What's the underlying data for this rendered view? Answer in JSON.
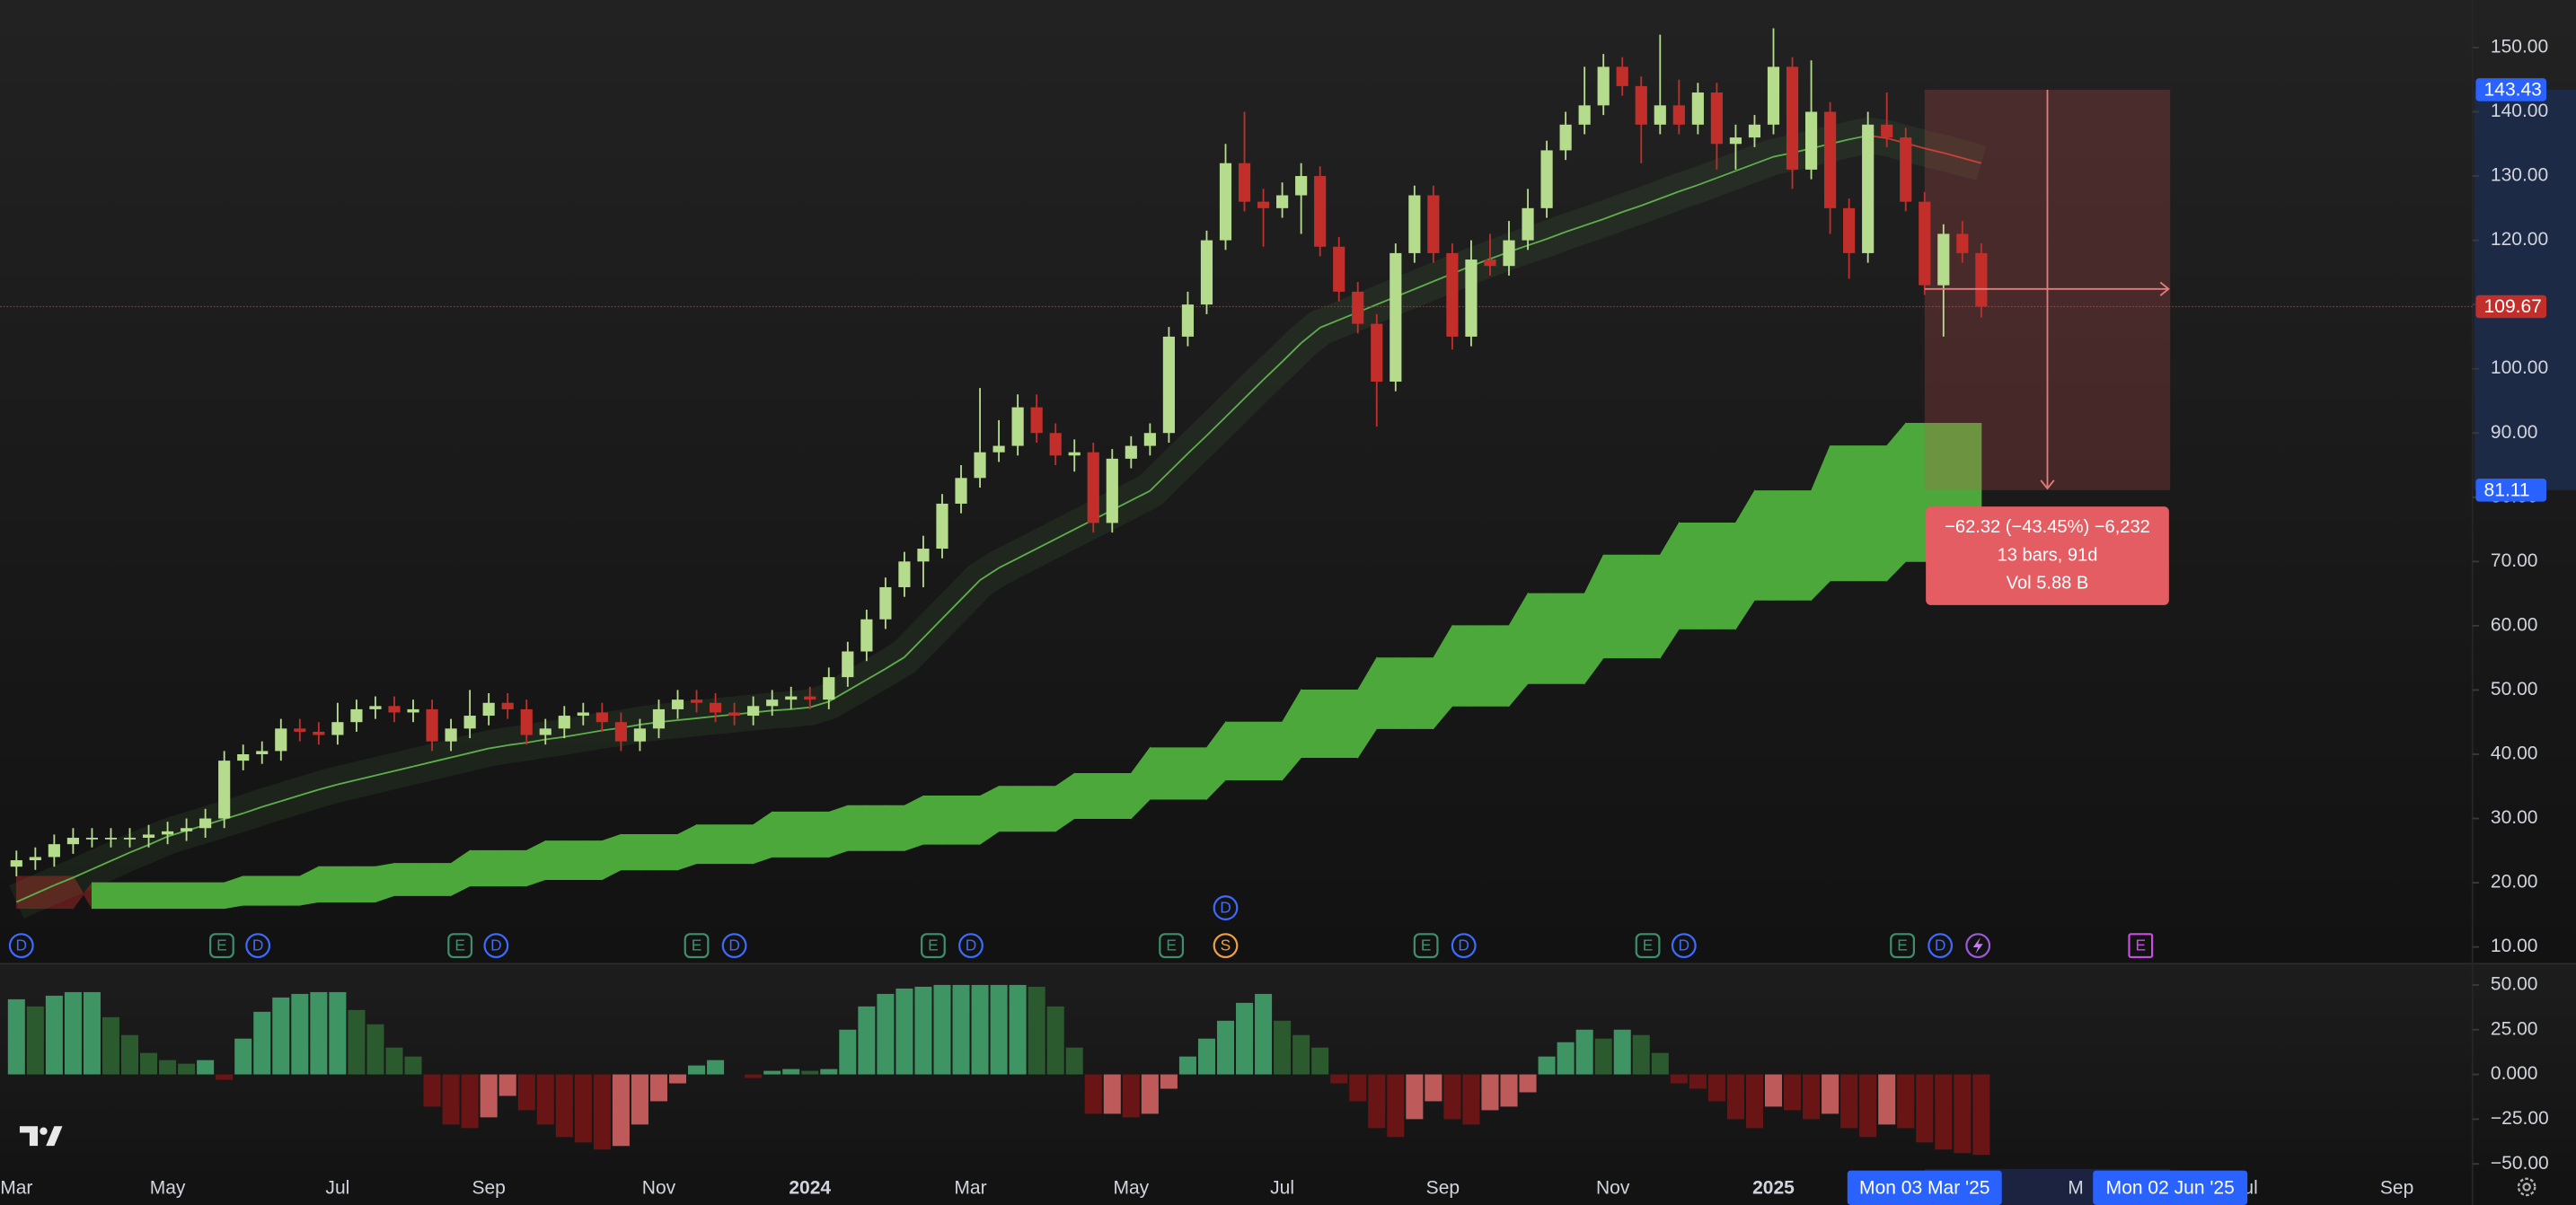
{
  "chart_data": [
    {
      "type": "candlestick",
      "open": [
        22.5,
        23.5,
        24,
        26,
        27,
        27,
        27,
        27,
        27.5,
        28,
        28.5,
        30,
        39,
        40,
        40.5,
        44,
        43.5,
        43,
        45,
        47,
        47.5,
        46.5,
        47,
        42,
        44,
        46,
        48,
        47,
        43,
        44,
        46,
        46.5,
        45,
        42,
        44,
        47,
        48.5,
        48,
        46.5,
        46,
        47.5,
        48.5,
        49,
        48.5,
        52,
        56,
        61,
        66,
        70,
        72,
        79,
        83,
        87,
        88,
        94,
        90,
        86.5,
        87,
        76,
        86,
        88,
        90,
        105,
        110,
        120,
        132,
        126,
        125,
        127,
        130,
        119,
        112,
        107,
        98,
        118,
        127,
        118,
        105,
        117,
        116,
        120,
        125,
        134,
        138,
        141,
        147,
        144,
        138,
        141,
        138,
        143,
        135,
        136,
        138,
        147,
        131,
        140,
        125,
        118,
        138,
        136,
        126,
        113,
        121,
        118
      ],
      "high": [
        25,
        25.5,
        27.5,
        28.5,
        28.5,
        28.5,
        28.5,
        29,
        29.5,
        30,
        31.5,
        40.5,
        41.5,
        42,
        45.5,
        45.5,
        45,
        48,
        48.5,
        49,
        49,
        48.5,
        48.5,
        45.5,
        50,
        49.5,
        49.5,
        48.5,
        45.5,
        47.5,
        48,
        48,
        46.5,
        45.5,
        48.5,
        50,
        50,
        49.5,
        48,
        49,
        50,
        50.5,
        50.5,
        53.5,
        57.5,
        62.5,
        67.5,
        71.5,
        74,
        80.5,
        85,
        97,
        92,
        96,
        96,
        91.5,
        89,
        88.5,
        87.5,
        89.5,
        91.5,
        106.5,
        112,
        121.5,
        135,
        140,
        128,
        129,
        132,
        131.5,
        120.5,
        113.5,
        108.5,
        119.5,
        128.5,
        128.5,
        119.5,
        120,
        121,
        123,
        128,
        135.5,
        140,
        147,
        149,
        148.5,
        145.5,
        152,
        145,
        144.5,
        144.5,
        138,
        139.5,
        153,
        148.5,
        148,
        141.5,
        126.5,
        140,
        143,
        137.5,
        127.5,
        122.5,
        123,
        119.5
      ],
      "low": [
        21,
        22,
        22.5,
        24.5,
        25.5,
        25.5,
        25.5,
        25.5,
        26,
        26.5,
        27,
        28.5,
        37.5,
        38.5,
        39,
        42,
        41.5,
        41.5,
        43.5,
        45.5,
        45,
        45,
        40.5,
        40.5,
        42.5,
        44.5,
        45.5,
        41.5,
        41.5,
        42.5,
        44.5,
        43.5,
        40.5,
        40.5,
        42.5,
        45.5,
        46.5,
        45,
        44.5,
        44.5,
        46,
        47,
        47,
        47,
        50.5,
        54.5,
        59.5,
        64.5,
        66,
        70.5,
        77.5,
        81.5,
        85.5,
        86.5,
        88.5,
        85,
        84,
        74.5,
        74.5,
        84.5,
        86.5,
        88.5,
        103.5,
        108.5,
        118.5,
        124.5,
        119,
        123.5,
        121,
        117.5,
        110.5,
        105.5,
        91,
        96.5,
        116.5,
        116.5,
        103,
        103.5,
        114.5,
        114.5,
        118.5,
        123.5,
        132.5,
        136.5,
        139.5,
        142.5,
        132,
        136.5,
        136.5,
        136.5,
        131,
        131,
        134.5,
        136.5,
        128,
        129.5,
        121,
        114,
        116.5,
        134.5,
        124.5,
        111.5,
        105,
        116.5,
        108
      ],
      "close": [
        23.5,
        24,
        26,
        27,
        27,
        27,
        27,
        27.5,
        28,
        28.5,
        30,
        39,
        40,
        40.5,
        44,
        43.5,
        43,
        45,
        47,
        47.5,
        46.5,
        47,
        42,
        44,
        46,
        48,
        47,
        43,
        44,
        46,
        46.5,
        45,
        42,
        44,
        47,
        48.5,
        48,
        46.5,
        46,
        47.5,
        48.5,
        49,
        48.5,
        52,
        56,
        61,
        66,
        70,
        72,
        79,
        83,
        87,
        88,
        94,
        90,
        86.5,
        87,
        76,
        86,
        88,
        90,
        105,
        110,
        120,
        132,
        126,
        125,
        127,
        130,
        119,
        112,
        107,
        98,
        118,
        127,
        118,
        105,
        117,
        116,
        120,
        125,
        134,
        138,
        141,
        147,
        144,
        138,
        141,
        138,
        143,
        135,
        136,
        138,
        147,
        131,
        140,
        125,
        118,
        138,
        136,
        126,
        113,
        121,
        118,
        109.67
      ],
      "ma": [
        17,
        18.3,
        19.6,
        20.8,
        22.1,
        23.4,
        24.7,
        25.9,
        27.2,
        28.1,
        29,
        29.9,
        30.8,
        31.8,
        32.7,
        33.6,
        34.5,
        35.3,
        36,
        36.7,
        37.4,
        38.1,
        38.8,
        39.5,
        40.2,
        40.9,
        41.4,
        41.8,
        42.3,
        42.7,
        43.2,
        43.7,
        44.1,
        44.6,
        45,
        45.3,
        45.6,
        45.9,
        46.2,
        46.5,
        46.8,
        47,
        47.3,
        48.2,
        49.9,
        51.6,
        53.3,
        55.1,
        58.1,
        61.1,
        64.1,
        67.1,
        69,
        70.5,
        72,
        73.5,
        75,
        76.5,
        78,
        79.5,
        81,
        83.9,
        86.8,
        89.6,
        92.5,
        95.4,
        98.3,
        101.1,
        104,
        106.4,
        107.6,
        108.8,
        110,
        111.2,
        112.4,
        113.6,
        114.8,
        116,
        117.1,
        118.2,
        119.2,
        120.2,
        121.3,
        122.3,
        123.3,
        124.4,
        125.4,
        126.5,
        127.6,
        128.6,
        129.7,
        130.8,
        131.9,
        133,
        133.6,
        134.3,
        135,
        135.7,
        136.3,
        135.9,
        135.1,
        134.3,
        133.6,
        132.8,
        132
      ],
      "span_a": [
        16,
        16,
        16,
        16,
        20,
        20,
        20,
        20,
        20,
        20,
        20,
        20,
        21,
        21,
        21,
        21,
        22.5,
        22.5,
        22.5,
        22.5,
        23,
        23,
        23,
        23,
        25,
        25,
        25,
        25,
        26.5,
        26.5,
        26.5,
        26.5,
        27.5,
        27.5,
        27.5,
        27.5,
        29,
        29,
        29,
        29,
        31,
        31,
        31,
        31,
        32,
        32,
        32,
        32,
        33.5,
        33.5,
        33.5,
        33.5,
        35,
        35,
        35,
        35,
        37,
        37,
        37,
        37,
        41,
        41,
        41,
        41,
        45,
        45,
        45,
        45,
        50,
        50,
        50,
        50,
        55,
        55,
        55,
        55,
        60,
        60,
        60,
        60,
        65,
        65,
        65,
        65,
        71,
        71,
        71,
        71,
        76,
        76,
        76,
        76,
        81,
        81,
        81,
        81,
        88,
        88,
        88,
        88,
        91.5,
        91.5,
        91.5,
        91.5,
        91.5
      ],
      "span_b": [
        21,
        21,
        21,
        21,
        16,
        16,
        16,
        16,
        16,
        16,
        16,
        16,
        16.5,
        16.5,
        16.5,
        16.5,
        17,
        17,
        17,
        17,
        18,
        18,
        18,
        18,
        19.5,
        19.5,
        19.5,
        19.5,
        20.5,
        20.5,
        20.5,
        20.5,
        22,
        22,
        22,
        22,
        23,
        23,
        23,
        23,
        24,
        24,
        24,
        24,
        25,
        25,
        25,
        25,
        26,
        26,
        26,
        26,
        28,
        28,
        28,
        28,
        30,
        30,
        30,
        30,
        33,
        33,
        33,
        33,
        36,
        36,
        36,
        36,
        39.5,
        39.5,
        39.5,
        39.5,
        44,
        44,
        44,
        44,
        47.5,
        47.5,
        47.5,
        47.5,
        51,
        51,
        51,
        51,
        55,
        55,
        55,
        55,
        59.5,
        59.5,
        59.5,
        59.5,
        64,
        64,
        64,
        64,
        67,
        67,
        67,
        67,
        70,
        70,
        70,
        70,
        70
      ],
      "colors": {
        "up": "#b5dc8d",
        "down": "#c22f2b",
        "ma_up": "#5fae4c",
        "ma_down": "#c93a36",
        "cloud_up": "#4ca83a",
        "cloud_down": "#5c1c1c",
        "last": "#c22f2b",
        "marker": "#2962ff"
      },
      "xlim": [
        -0.87,
        130
      ],
      "ylim": [
        7.4,
        157.4
      ],
      "yticks": [
        {
          "value": 150,
          "label": "150.00"
        },
        {
          "value": 140,
          "label": "140.00"
        },
        {
          "value": 130,
          "label": "130.00"
        },
        {
          "value": 120,
          "label": "120.00"
        },
        {
          "value": 110,
          "label": "110.00"
        },
        {
          "value": 100,
          "label": "100.00"
        },
        {
          "value": 90,
          "label": "90.00"
        },
        {
          "value": 80,
          "label": "80.00"
        },
        {
          "value": 70,
          "label": "70.00"
        },
        {
          "value": 60,
          "label": "60.00"
        },
        {
          "value": 50,
          "label": "50.00"
        },
        {
          "value": 40,
          "label": "40.00"
        },
        {
          "value": 30,
          "label": "30.00"
        },
        {
          "value": 20,
          "label": "20.00"
        },
        {
          "value": 10,
          "label": "10.00"
        }
      ],
      "xticks": [
        {
          "value": 0,
          "label": "Mar"
        },
        {
          "value": 8,
          "label": "May"
        },
        {
          "value": 17,
          "label": "Jul"
        },
        {
          "value": 25,
          "label": "Sep"
        },
        {
          "value": 34,
          "label": "Nov"
        },
        {
          "value": 42,
          "label": "2024"
        },
        {
          "value": 50.5,
          "label": "Mar"
        },
        {
          "value": 59,
          "label": "May"
        },
        {
          "value": 67,
          "label": "Jul"
        },
        {
          "value": 75.5,
          "label": "Sep"
        },
        {
          "value": 84.5,
          "label": "Nov"
        },
        {
          "value": 93,
          "label": "2025"
        },
        {
          "value": 109,
          "label": "M"
        },
        {
          "value": 118,
          "label": "Jul"
        },
        {
          "value": 126,
          "label": "Sep"
        }
      ],
      "last": 109.67,
      "measure": {
        "from": 143.43,
        "to": 81.11,
        "start": {
          "value": 101,
          "label": "Mon 03 Mar '25"
        },
        "end": {
          "value": 114,
          "label": "Mon 02 Jun '25"
        },
        "lines": [
          "−62.32 (−43.45%) −6,232",
          "13 bars, 91d",
          "Vol 5.88 B"
        ]
      },
      "events": [
        "D",
        "E",
        "D",
        "E",
        "D",
        "E",
        "D",
        "E",
        "D",
        "E",
        "S",
        "D",
        "E",
        "D",
        "E",
        "D",
        "E",
        "D",
        "E"
      ]
    },
    {
      "type": "bar",
      "values": [
        42,
        38,
        44,
        46,
        46,
        32,
        22,
        12,
        8,
        6,
        8,
        -3,
        20,
        35,
        43,
        45,
        46,
        46,
        36,
        28,
        15,
        10,
        -18,
        -28,
        -30,
        -24,
        -12,
        -20,
        -28,
        -35,
        -38,
        -42,
        -40,
        -28,
        -15,
        -5,
        5,
        8,
        0,
        -2,
        2,
        3,
        2,
        3,
        25,
        38,
        45,
        48,
        49,
        50,
        50,
        50,
        50,
        50,
        49,
        38,
        15,
        -22,
        -22,
        -24,
        -22,
        -8,
        10,
        20,
        30,
        40,
        45,
        30,
        22,
        15,
        -5,
        -15,
        -30,
        -35,
        -25,
        -15,
        -25,
        -28,
        -20,
        -18,
        -10,
        10,
        18,
        25,
        20,
        25,
        22,
        12,
        -5,
        -8,
        -15,
        -25,
        -30,
        -18,
        -20,
        -25,
        -22,
        -30,
        -35,
        -28,
        -30,
        -38,
        -42,
        -44,
        -45
      ],
      "colors": {
        "pos_up": "#3f9463",
        "pos_down": "#2b5a2e",
        "neg_down": "#6a1515",
        "neg_up": "#bf5a5a"
      },
      "ylim": [
        -52.8,
        61.9
      ],
      "yticks": [
        {
          "value": 50,
          "label": "50.00"
        },
        {
          "value": 25,
          "label": "25.00"
        },
        {
          "value": 0,
          "label": "0.000"
        },
        {
          "value": -25,
          "label": "−25.00"
        },
        {
          "value": -50,
          "label": "−50.00"
        }
      ]
    }
  ]
}
